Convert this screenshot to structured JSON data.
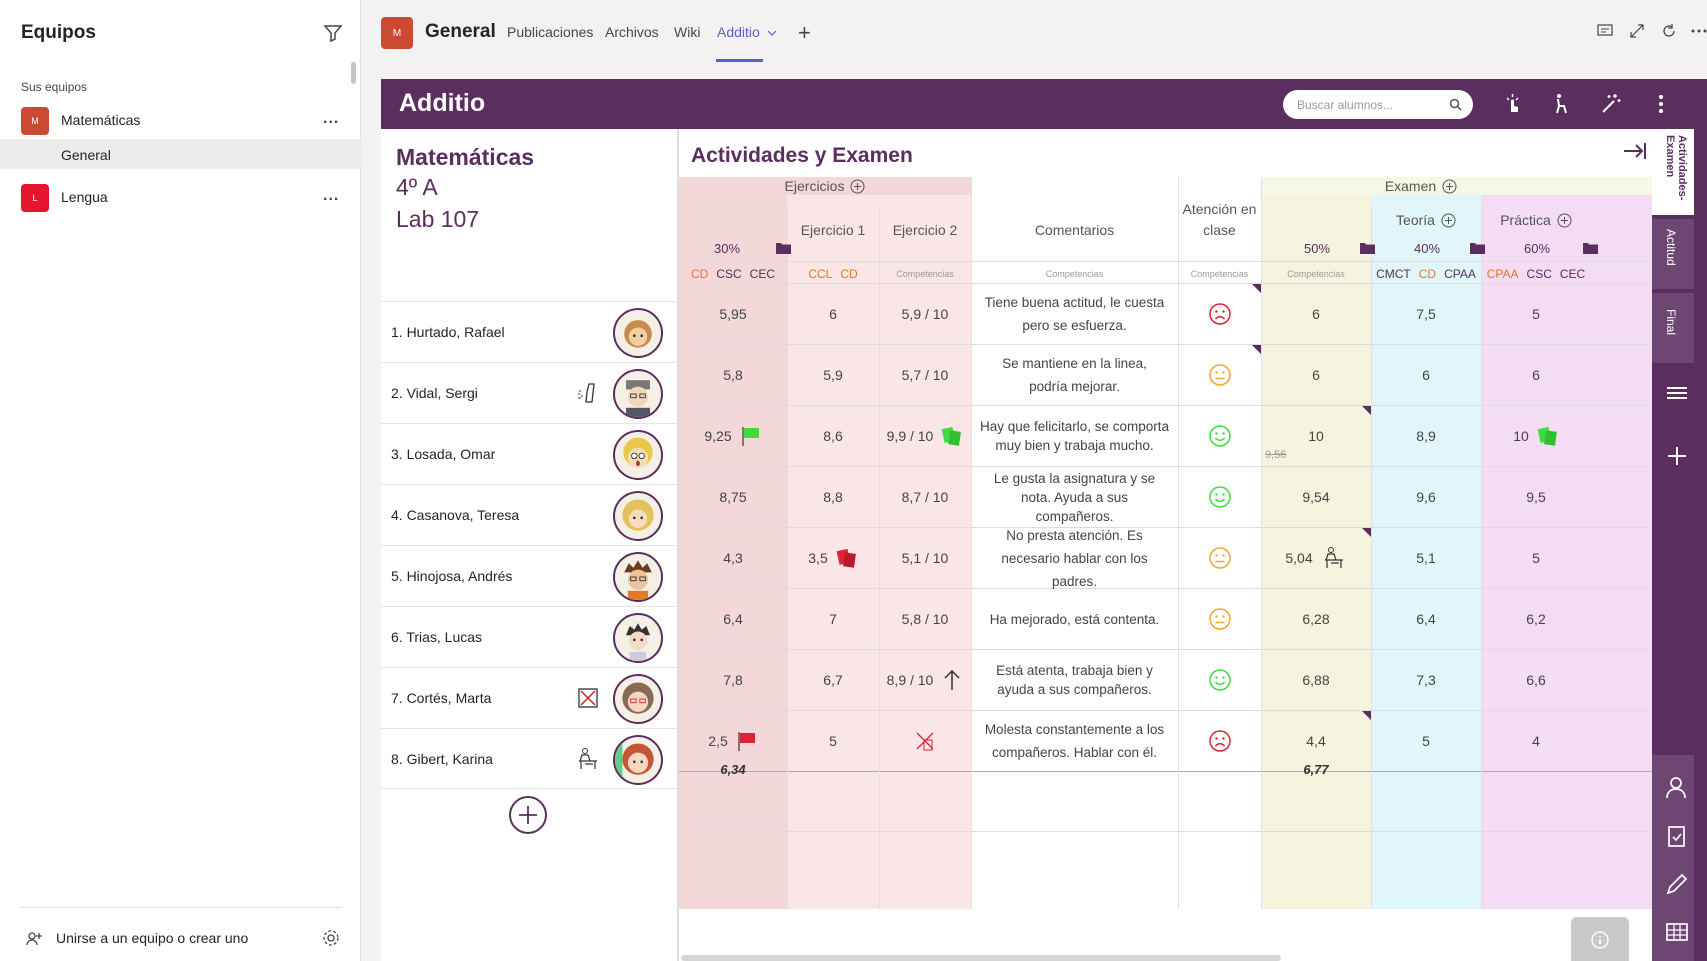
{
  "sidebar": {
    "title": "Equipos",
    "section_label": "Sus equipos",
    "teams": [
      {
        "initial": "M",
        "name": "Matemáticas",
        "color": "#cc4a31",
        "more": "..."
      },
      {
        "initial": "L",
        "name": "Lengua",
        "color": "#e3162d",
        "more": "..."
      }
    ],
    "channel": "General",
    "footer_join": "Unirse a un equipo o crear uno"
  },
  "topbar": {
    "logo_initial": "M",
    "title": "General",
    "tabs": [
      "Publicaciones",
      "Archivos",
      "Wiki",
      "Additio"
    ],
    "add": "+"
  },
  "app": {
    "logo": "Additio",
    "search_placeholder": "Buscar alumnos...",
    "class": {
      "name": "Matemáticas",
      "group": "4º A",
      "room": "Lab 107"
    },
    "grid_title": "Actividades y Examen",
    "groups": {
      "ejercicios": "Ejercicios",
      "examen": "Examen"
    },
    "columns": {
      "ej_total": {
        "pct": "30%",
        "comps": [
          "CD",
          "CSC",
          "CEC"
        ]
      },
      "ej1": {
        "label": "Ejercicio 1",
        "comps": [
          "CCL",
          "CD"
        ]
      },
      "ej2": {
        "label": "Ejercicio 2",
        "comps_label": "Competencias"
      },
      "comentarios": {
        "label": "Comentarios",
        "comps_label": "Competencias"
      },
      "atencion": {
        "label": "Atención en clase",
        "comps_label": "Competencias"
      },
      "ex_total": {
        "pct": "50%",
        "comps_label": "Competencias"
      },
      "teoria": {
        "label": "Teoría",
        "pct": "40%",
        "comps": [
          "CMCT",
          "CD",
          "CPAA"
        ]
      },
      "practica": {
        "label": "Práctica",
        "pct": "60%",
        "comps": [
          "CPAA",
          "CSC",
          "CEC"
        ]
      }
    },
    "students": [
      {
        "name": "1. Hurtado, Rafael",
        "ej": "5,95",
        "ej1": "6",
        "ej2": "5,9 / 10",
        "comment": "Tiene buena actitud, le cuesta pero se esfuerza.",
        "mood": "sad",
        "ex": "6",
        "teoria": "7,5",
        "practica": "5"
      },
      {
        "name": "2. Vidal, Sergi",
        "ej": "5,8",
        "ej1": "5,9",
        "ej2": "5,7 / 10",
        "comment": "Se mantiene en la linea, podría mejorar.",
        "mood": "neutral",
        "ex": "6",
        "teoria": "6",
        "practica": "6"
      },
      {
        "name": "3. Losada, Omar",
        "ej": "9,25",
        "ej1": "8,6",
        "ej2": "9,9 / 10",
        "comment": "Hay que felicitarlo, se comporta muy bien y trabaja mucho.",
        "mood": "happy",
        "ex": "10",
        "ex_old": "9,56",
        "teoria": "8,9",
        "practica": "10"
      },
      {
        "name": "4. Casanova, Teresa",
        "ej": "8,75",
        "ej1": "8,8",
        "ej2": "8,7 / 10",
        "comment": "Le gusta la asignatura y se nota. Ayuda a sus compañeros.",
        "mood": "happy",
        "ex": "9,54",
        "teoria": "9,6",
        "practica": "9,5"
      },
      {
        "name": "5. Hinojosa, Andrés",
        "ej": "4,3",
        "ej1": "3,5",
        "ej2": "5,1 / 10",
        "comment": "No presta atención. Es necesario hablar con los padres.",
        "mood": "neutral",
        "ex": "5,04",
        "teoria": "5,1",
        "practica": "5"
      },
      {
        "name": "6. Trias, Lucas",
        "ej": "6,4",
        "ej1": "7",
        "ej2": "5,8 / 10",
        "comment": "Ha mejorado, está contenta.",
        "mood": "neutral",
        "ex": "6,28",
        "teoria": "6,4",
        "practica": "6,2"
      },
      {
        "name": "7. Cortés, Marta",
        "ej": "7,8",
        "ej1": "6,7",
        "ej2": "8,9 / 10",
        "comment": "Está atenta, trabaja bien y ayuda a sus compañeros.",
        "mood": "happy",
        "ex": "6,88",
        "teoria": "7,3",
        "practica": "6,6"
      },
      {
        "name": "8. Gibert, Karina",
        "ej": "2,5",
        "ej1": "5",
        "ej2": "",
        "comment": "Molesta constantemente a los compañeros. Hablar con él.",
        "mood": "sad",
        "ex": "4,4",
        "teoria": "5",
        "practica": "4"
      }
    ],
    "averages": {
      "ej": "6,34",
      "ex": "6,77"
    },
    "rail_tabs": [
      "Actividades-Examen",
      "Actitud",
      "Final"
    ]
  },
  "colors": {
    "purple": "#5a2e5e",
    "pink_col": "#f4d7d8",
    "pink_light": "#fae6e7",
    "yellow": "#f7f7e6",
    "cyan": "#e1f6f8",
    "violet": "#f3dcf4",
    "green": "#3fdc3f",
    "orange": "#f2a62e",
    "red": "#e02236"
  }
}
